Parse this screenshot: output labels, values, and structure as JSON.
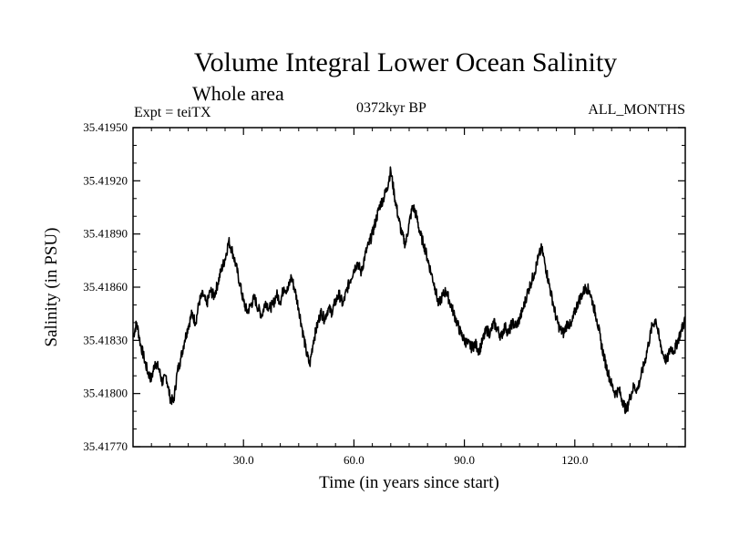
{
  "header": {
    "title": "Volume Integral Lower Ocean Salinity",
    "subtitle": "Whole area",
    "expt": "Expt = teiTX",
    "period": "0372kyr BP",
    "months": "ALL_MONTHS"
  },
  "chart_data": {
    "type": "line",
    "title": "Volume Integral Lower Ocean Salinity",
    "xlabel": "Time (in years since start)",
    "ylabel": "Salinity (in PSU)",
    "xlim": [
      0,
      150
    ],
    "ylim": [
      35.4177,
      35.4195
    ],
    "xticks": [
      30,
      60,
      90,
      120
    ],
    "xtick_labels": [
      "30.0",
      "60.0",
      "90.0",
      "120.0"
    ],
    "yticks": [
      35.4177,
      35.418,
      35.4183,
      35.4186,
      35.4189,
      35.4192,
      35.4195
    ],
    "ytick_labels": [
      "35.41770",
      "35.41800",
      "35.41830",
      "35.41860",
      "35.41890",
      "35.41920",
      "35.41950"
    ],
    "grid": false,
    "line_color": "#000000",
    "series": [
      {
        "name": "salinity",
        "x": [
          0,
          1,
          2,
          3,
          4,
          5,
          6,
          7,
          8,
          9,
          10,
          11,
          12,
          13,
          14,
          15,
          16,
          17,
          18,
          19,
          20,
          21,
          22,
          23,
          24,
          25,
          26,
          27,
          28,
          29,
          30,
          31,
          32,
          33,
          34,
          35,
          36,
          37,
          38,
          39,
          40,
          41,
          42,
          43,
          44,
          45,
          46,
          47,
          48,
          49,
          50,
          51,
          52,
          53,
          54,
          55,
          56,
          57,
          58,
          59,
          60,
          61,
          62,
          63,
          64,
          65,
          66,
          67,
          68,
          69,
          70,
          71,
          72,
          73,
          74,
          75,
          76,
          77,
          78,
          79,
          80,
          81,
          82,
          83,
          84,
          85,
          86,
          87,
          88,
          89,
          90,
          91,
          92,
          93,
          94,
          95,
          96,
          97,
          98,
          99,
          100,
          101,
          102,
          103,
          104,
          105,
          106,
          107,
          108,
          109,
          110,
          111,
          112,
          113,
          114,
          115,
          116,
          117,
          118,
          119,
          120,
          121,
          122,
          123,
          124,
          125,
          126,
          127,
          128,
          129,
          130,
          131,
          132,
          133,
          134,
          135,
          136,
          137,
          138,
          139,
          140,
          141,
          142,
          143,
          144,
          145,
          146,
          147,
          148,
          149,
          150
        ],
        "values": [
          35.41832,
          35.4184,
          35.41828,
          35.4182,
          35.41812,
          35.41808,
          35.41818,
          35.41814,
          35.41806,
          35.4181,
          35.41798,
          35.41795,
          35.41812,
          35.4182,
          35.4183,
          35.41838,
          35.41845,
          35.4184,
          35.41852,
          35.41856,
          35.4185,
          35.41858,
          35.41855,
          35.41862,
          35.4187,
          35.41876,
          35.41886,
          35.4188,
          35.41872,
          35.41862,
          35.41852,
          35.41846,
          35.4185,
          35.41854,
          35.41848,
          35.41844,
          35.41852,
          35.41848,
          35.4185,
          35.41856,
          35.41852,
          35.4186,
          35.41858,
          35.41866,
          35.41858,
          35.41848,
          35.41836,
          35.41824,
          35.41816,
          35.4183,
          35.41838,
          35.41846,
          35.41842,
          35.41848,
          35.41846,
          35.41852,
          35.41856,
          35.4185,
          35.41858,
          35.41864,
          35.4187,
          35.41874,
          35.41868,
          35.41878,
          35.41884,
          35.4189,
          35.41898,
          35.41906,
          35.4191,
          35.41916,
          35.41926,
          35.41912,
          35.419,
          35.4189,
          35.41884,
          35.41896,
          35.41906,
          35.419,
          35.4189,
          35.41884,
          35.41876,
          35.41868,
          35.4186,
          35.4185,
          35.41855,
          35.41858,
          35.41852,
          35.41846,
          35.4184,
          35.41834,
          35.4183,
          35.41828,
          35.41826,
          35.41828,
          35.41824,
          35.4183,
          35.41836,
          35.41834,
          35.4184,
          35.41836,
          35.41832,
          35.41838,
          35.41834,
          35.4184,
          35.41838,
          35.41842,
          35.41848,
          35.41856,
          35.41862,
          35.41868,
          35.41876,
          35.41882,
          35.41872,
          35.41862,
          35.41852,
          35.41842,
          35.41836,
          35.41834,
          35.4184,
          35.41838,
          35.41846,
          35.41852,
          35.41856,
          35.4186,
          35.41858,
          35.4185,
          35.41842,
          35.4183,
          35.4182,
          35.41812,
          35.41805,
          35.418,
          35.41802,
          35.41796,
          35.4179,
          35.41798,
          35.41804,
          35.41802,
          35.4181,
          35.41818,
          35.41828,
          35.41838,
          35.41842,
          35.4183,
          35.41822,
          35.41818,
          35.41826,
          35.41824,
          35.4183,
          35.41836,
          35.41842
        ]
      }
    ]
  }
}
